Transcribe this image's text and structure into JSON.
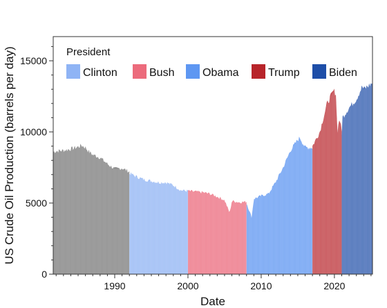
{
  "chart_data": {
    "type": "bar",
    "title": "",
    "xlabel": "Date",
    "ylabel": "US Crude Oil Production (barrels per day)",
    "xlim": [
      1981.6,
      2025.2
    ],
    "ylim": [
      0,
      16700
    ],
    "x_ticks": [
      1990,
      2000,
      2010,
      2020
    ],
    "y_ticks": [
      0,
      5000,
      10000,
      15000
    ],
    "grid": false,
    "legend": {
      "title": "President",
      "placement": "top-left",
      "entries": [
        {
          "name": "Clinton",
          "color": "#8fb4f5"
        },
        {
          "name": "Bush",
          "color": "#ec6b7c"
        },
        {
          "name": "Obama",
          "color": "#5e97f2"
        },
        {
          "name": "Trump",
          "color": "#b8242a"
        },
        {
          "name": "Biden",
          "color": "#1e4ea8"
        }
      ]
    },
    "series": [
      {
        "name": "",
        "color": "#888888",
        "opacity": 0.95,
        "x": [
          1981.6,
          1982,
          1983,
          1984,
          1985,
          1985.5,
          1986,
          1986.5,
          1987,
          1988,
          1989,
          1990,
          1991,
          1992.0
        ],
        "values": [
          8600,
          8650,
          8700,
          8800,
          8950,
          9050,
          8900,
          8600,
          8400,
          8200,
          7750,
          7400,
          7450,
          7200
        ]
      },
      {
        "name": "Clinton",
        "color": "#8fb4f5",
        "opacity": 0.85,
        "x": [
          1992.0,
          1993,
          1994,
          1995,
          1996,
          1997,
          1998,
          1999,
          2000.0
        ],
        "values": [
          7100,
          6850,
          6650,
          6550,
          6450,
          6450,
          6250,
          5900,
          5850
        ]
      },
      {
        "name": "Bush",
        "color": "#ec6b7c",
        "opacity": 0.85,
        "x": [
          2000.0,
          2001,
          2002,
          2003,
          2004,
          2005,
          2005.7,
          2006,
          2007,
          2008.0
        ],
        "values": [
          5850,
          5800,
          5750,
          5650,
          5450,
          5200,
          4300,
          5150,
          5050,
          5100
        ]
      },
      {
        "name": "Obama",
        "color": "#5e97f2",
        "opacity": 0.85,
        "x": [
          2008.0,
          2008.7,
          2009,
          2010,
          2011,
          2012,
          2013,
          2014,
          2015,
          2015.3,
          2016,
          2017.0
        ],
        "values": [
          5000,
          4000,
          5300,
          5500,
          5650,
          6500,
          7500,
          8700,
          9450,
          9600,
          8900,
          8900
        ]
      },
      {
        "name": "Trump",
        "color": "#b8242a",
        "opacity": 0.8,
        "x": [
          2017.0,
          2018,
          2019,
          2019.9,
          2020.2,
          2020.4,
          2020.7,
          2021.0
        ],
        "values": [
          9000,
          10000,
          12000,
          12900,
          12700,
          10000,
          11000,
          10000
        ]
      },
      {
        "name": "Biden",
        "color": "#1e4ea8",
        "opacity": 0.8,
        "x": [
          2021.0,
          2021.1,
          2022,
          2023,
          2023.8,
          2024,
          2025.2
        ],
        "values": [
          9900,
          11000,
          11700,
          12300,
          13200,
          13000,
          13450
        ]
      }
    ]
  }
}
